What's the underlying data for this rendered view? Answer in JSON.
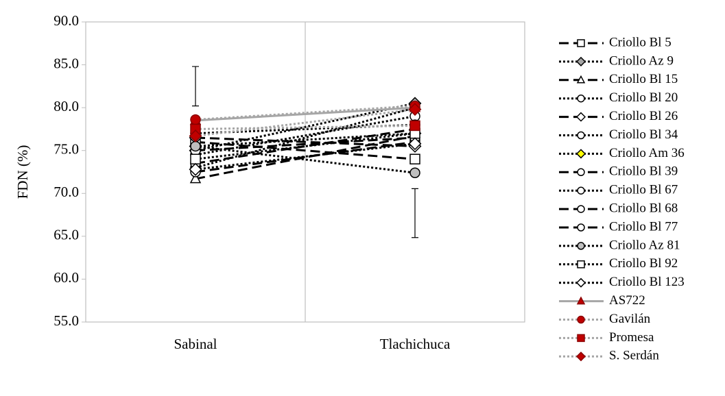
{
  "chart_data": {
    "type": "line",
    "ylabel": "FDN (%)",
    "categories": [
      "Sabinal",
      "Tlachichuca"
    ],
    "ylim": [
      55,
      90
    ],
    "yticks": [
      {
        "value": 55,
        "label": "55.0"
      },
      {
        "value": 60,
        "label": "60.0"
      },
      {
        "value": 65,
        "label": "65.0"
      },
      {
        "value": 70,
        "label": "70.0"
      },
      {
        "value": 75,
        "label": "75.0"
      },
      {
        "value": 80,
        "label": "80.0"
      },
      {
        "value": 85,
        "label": "85.0"
      },
      {
        "value": 90,
        "label": "90.0"
      }
    ],
    "legend": "right",
    "error_bars": [
      {
        "value": 82.5,
        "error": 2.3
      },
      {
        "value": 67.7,
        "error": 2.85
      }
    ],
    "series": [
      {
        "name": "Criollo Bl 5",
        "color": "#000000",
        "dash": "dash",
        "marker": "square",
        "marker_fill": "#ffffff",
        "values": [
          76.0,
          74.0
        ]
      },
      {
        "name": "Criollo Az 9",
        "color": "#000000",
        "dash": "dot",
        "marker": "diamond",
        "marker_fill": "#a6a6a6",
        "values": [
          75.0,
          80.5
        ]
      },
      {
        "name": "Criollo Bl 15",
        "color": "#000000",
        "dash": "dash",
        "marker": "triangle",
        "marker_fill": "#ffffff",
        "values": [
          71.7,
          76.7
        ]
      },
      {
        "name": "Criollo Bl 20",
        "color": "#000000",
        "dash": "dot",
        "marker": "circle",
        "marker_fill": "#ffffff",
        "values": [
          73.0,
          80.0
        ]
      },
      {
        "name": "Criollo Bl 26",
        "color": "#000000",
        "dash": "dash",
        "marker": "diamond",
        "marker_fill": "#ffffff",
        "values": [
          76.5,
          75.5
        ]
      },
      {
        "name": "Criollo Bl 34",
        "color": "#000000",
        "dash": "dot",
        "marker": "circle",
        "marker_fill": "#ffffff",
        "values": [
          74.5,
          79.0
        ]
      },
      {
        "name": "Criollo Am 36",
        "color": "#000000",
        "dash": "dot",
        "marker": "diamond",
        "marker_fill": "#ffff00",
        "values": [
          75.5,
          77.0
        ]
      },
      {
        "name": "Criollo Bl 39",
        "color": "#000000",
        "dash": "dash",
        "marker": "circle",
        "marker_fill": "#ffffff",
        "values": [
          72.5,
          76.0
        ]
      },
      {
        "name": "Criollo Bl 67",
        "color": "#000000",
        "dash": "dot",
        "marker": "circle",
        "marker_fill": "#ffffff",
        "values": [
          77.0,
          78.0
        ]
      },
      {
        "name": "Criollo Bl  68",
        "color": "#000000",
        "dash": "dash",
        "marker": "circle",
        "marker_fill": "#ffffff",
        "values": [
          73.5,
          77.5
        ]
      },
      {
        "name": "Criollo Bl 77",
        "color": "#000000",
        "dash": "dash",
        "marker": "circle",
        "marker_fill": "#ffffff",
        "values": [
          75.0,
          76.5
        ]
      },
      {
        "name": "Criollo  Az 81",
        "color": "#000000",
        "dash": "dot",
        "marker": "circle",
        "marker_fill": "#bfbfbf",
        "values": [
          75.5,
          72.4
        ]
      },
      {
        "name": "Criollo Bl 92",
        "color": "#000000",
        "dash": "dot",
        "marker": "square",
        "marker_fill": "#ffffff",
        "values": [
          74.0,
          77.0
        ]
      },
      {
        "name": "Criollo Bl 123",
        "color": "#000000",
        "dash": "dot",
        "marker": "diamond",
        "marker_fill": "#ffffff",
        "values": [
          72.8,
          75.8
        ]
      },
      {
        "name": "AS722",
        "color": "#a6a6a6",
        "dash": "solid",
        "marker": "triangle",
        "marker_fill": "#c00000",
        "values": [
          78.5,
          80.0
        ]
      },
      {
        "name": "Gavilán",
        "color": "#a6a6a6",
        "dash": "dot",
        "marker": "circle",
        "marker_fill": "#c00000",
        "values": [
          78.6,
          80.2
        ]
      },
      {
        "name": "Promesa",
        "color": "#a6a6a6",
        "dash": "dot",
        "marker": "square",
        "marker_fill": "#c00000",
        "values": [
          77.5,
          77.9
        ]
      },
      {
        "name": "S. Serdán",
        "color": "#a6a6a6",
        "dash": "dot",
        "marker": "diamond",
        "marker_fill": "#c00000",
        "values": [
          76.7,
          79.8
        ]
      }
    ]
  }
}
